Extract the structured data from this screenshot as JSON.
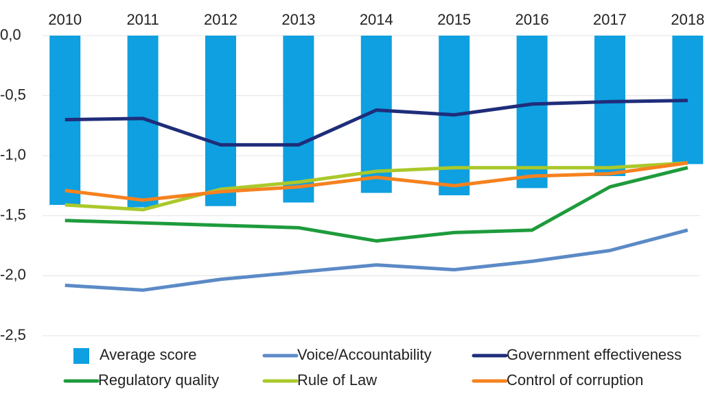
{
  "chart_data": {
    "type": "bar",
    "categories": [
      "2010",
      "2011",
      "2012",
      "2013",
      "2014",
      "2015",
      "2016",
      "2017",
      "2018"
    ],
    "ylim": [
      -2.5,
      0
    ],
    "yticks": [
      {
        "value": 0,
        "label": "0,0"
      },
      {
        "value": -0.5,
        "label": "-0,5"
      },
      {
        "value": -1.0,
        "label": "-1,0"
      },
      {
        "value": -1.5,
        "label": "-1,5"
      },
      {
        "value": -2.0,
        "label": "-2,0"
      },
      {
        "value": -2.5,
        "label": "-2,5"
      }
    ],
    "grid": true,
    "series": [
      {
        "name": "Average score",
        "type": "bar",
        "color": "#0ea0e0",
        "values": [
          -1.41,
          -1.43,
          -1.42,
          -1.39,
          -1.31,
          -1.33,
          -1.27,
          -1.17,
          -1.07
        ]
      },
      {
        "name": "Voice/Accountability",
        "type": "line",
        "color": "#5b8ac6",
        "values": [
          -2.08,
          -2.12,
          -2.03,
          -1.97,
          -1.91,
          -1.95,
          -1.88,
          -1.79,
          -1.62
        ]
      },
      {
        "name": "Government effectiveness",
        "type": "line",
        "color": "#1f2d7a",
        "values": [
          -0.7,
          -0.69,
          -0.91,
          -0.91,
          -0.62,
          -0.66,
          -0.57,
          -0.55,
          -0.54
        ]
      },
      {
        "name": "Regulatory quality",
        "type": "line",
        "color": "#1e9b3c",
        "values": [
          -1.54,
          -1.56,
          -1.58,
          -1.6,
          -1.71,
          -1.64,
          -1.62,
          -1.26,
          -1.1
        ]
      },
      {
        "name": "Rule of Law",
        "type": "line",
        "color": "#aac92b",
        "values": [
          -1.41,
          -1.45,
          -1.28,
          -1.22,
          -1.13,
          -1.1,
          -1.1,
          -1.1,
          -1.06
        ]
      },
      {
        "name": "Control of corruption",
        "type": "line",
        "color": "#f5821f",
        "values": [
          -1.29,
          -1.37,
          -1.3,
          -1.26,
          -1.18,
          -1.25,
          -1.17,
          -1.15,
          -1.06
        ]
      }
    ]
  }
}
